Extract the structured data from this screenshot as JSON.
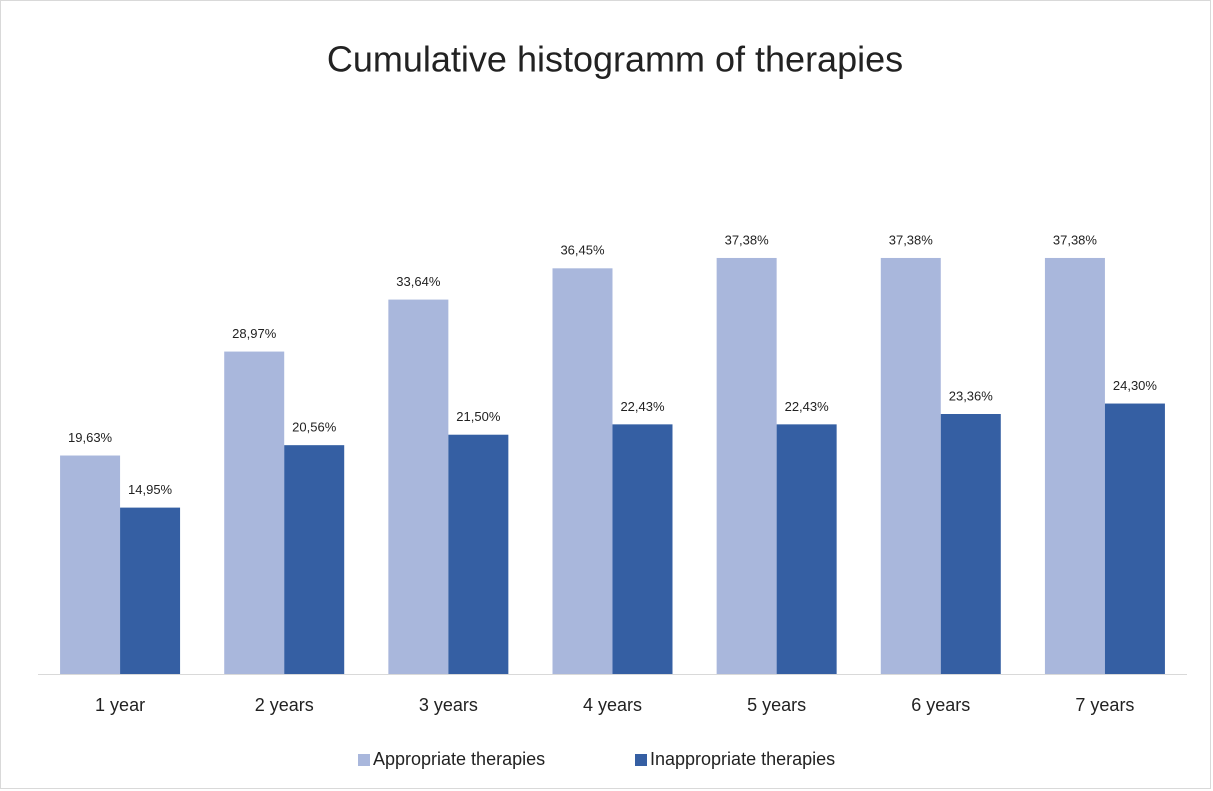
{
  "chart_data": {
    "type": "bar",
    "title": "Cumulative histogramm of therapies",
    "categories": [
      "1 year",
      "2 years",
      "3 years",
      "4 years",
      "5 years",
      "6 years",
      "7 years"
    ],
    "series": [
      {
        "name": "Appropriate therapies",
        "color": "#a9b7dc",
        "values": [
          19.63,
          28.97,
          33.64,
          36.45,
          37.38,
          37.38,
          37.38
        ],
        "value_labels": [
          "19,63%",
          "28,97%",
          "33,64%",
          "36,45%",
          "37,38%",
          "37,38%",
          "37,38%"
        ]
      },
      {
        "name": "Inappropriate therapies",
        "color": "#355fa3",
        "values": [
          14.95,
          20.56,
          21.5,
          22.43,
          22.43,
          23.36,
          24.3
        ],
        "value_labels": [
          "14,95%",
          "20,56%",
          "21,50%",
          "22,43%",
          "22,43%",
          "23,36%",
          "24,30%"
        ]
      }
    ]
  }
}
